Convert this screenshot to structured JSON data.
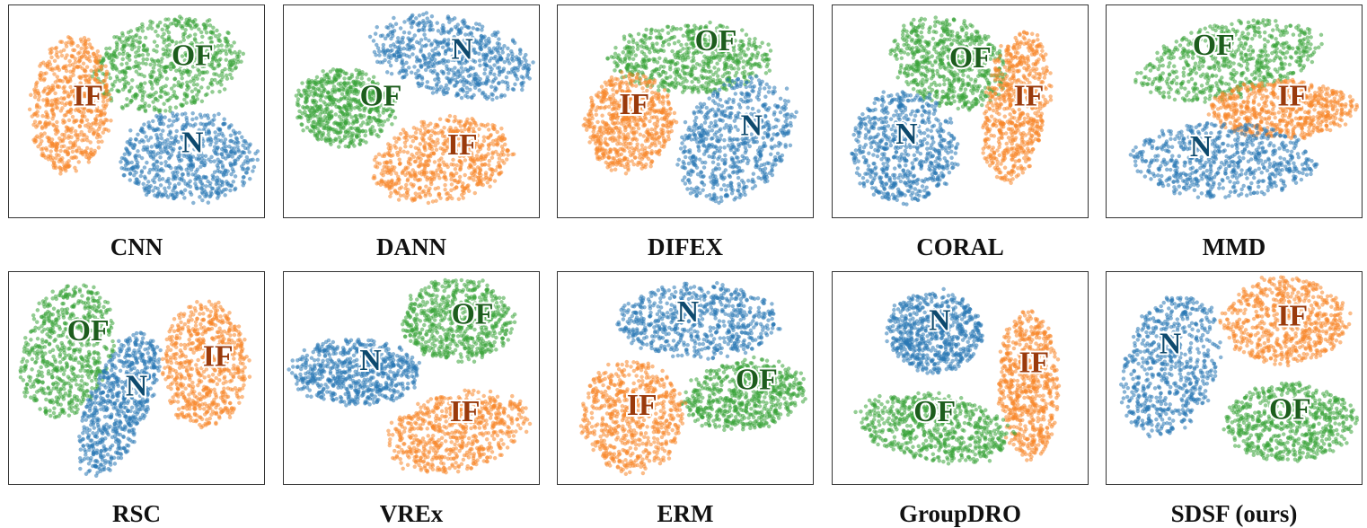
{
  "chart_data": {
    "type": "scatter",
    "description_classes": [
      "N",
      "IF",
      "OF"
    ],
    "colors": {
      "N": "#2a78b5",
      "IF": "#f7862a",
      "OF": "#3aa43a"
    },
    "label_colors": {
      "N": "#0e4a6e",
      "IF": "#9a3a0b",
      "OF": "#1d5d1d"
    },
    "panels": [
      {
        "title": "CNN",
        "clusters": [
          {
            "cls": "OF",
            "cx": 0.62,
            "cy": 0.28,
            "rx": 0.3,
            "ry": 0.22,
            "rot": -10
          },
          {
            "cls": "IF",
            "cx": 0.24,
            "cy": 0.47,
            "rx": 0.16,
            "ry": 0.33,
            "rot": 5
          },
          {
            "cls": "N",
            "cx": 0.7,
            "cy": 0.72,
            "rx": 0.27,
            "ry": 0.22,
            "rot": 0
          }
        ],
        "labels": [
          {
            "cls": "OF",
            "x": 0.72,
            "y": 0.25
          },
          {
            "cls": "IF",
            "x": 0.31,
            "y": 0.44
          },
          {
            "cls": "N",
            "x": 0.72,
            "y": 0.66
          }
        ]
      },
      {
        "title": "DANN",
        "clusters": [
          {
            "cls": "N",
            "cx": 0.66,
            "cy": 0.24,
            "rx": 0.33,
            "ry": 0.19,
            "rot": 12
          },
          {
            "cls": "OF",
            "cx": 0.24,
            "cy": 0.48,
            "rx": 0.2,
            "ry": 0.19,
            "rot": 0
          },
          {
            "cls": "IF",
            "cx": 0.62,
            "cy": 0.73,
            "rx": 0.28,
            "ry": 0.2,
            "rot": -12
          }
        ],
        "labels": [
          {
            "cls": "N",
            "x": 0.7,
            "y": 0.22
          },
          {
            "cls": "OF",
            "x": 0.38,
            "y": 0.44
          },
          {
            "cls": "IF",
            "x": 0.7,
            "y": 0.67
          }
        ]
      },
      {
        "title": "DIFEX",
        "clusters": [
          {
            "cls": "OF",
            "cx": 0.52,
            "cy": 0.25,
            "rx": 0.33,
            "ry": 0.17,
            "rot": 0
          },
          {
            "cls": "IF",
            "cx": 0.28,
            "cy": 0.55,
            "rx": 0.18,
            "ry": 0.24,
            "rot": 15
          },
          {
            "cls": "N",
            "cx": 0.7,
            "cy": 0.63,
            "rx": 0.2,
            "ry": 0.34,
            "rot": 38
          }
        ],
        "labels": [
          {
            "cls": "OF",
            "x": 0.62,
            "y": 0.18
          },
          {
            "cls": "IF",
            "x": 0.3,
            "y": 0.48
          },
          {
            "cls": "N",
            "x": 0.76,
            "y": 0.58
          }
        ]
      },
      {
        "title": "CORAL",
        "clusters": [
          {
            "cls": "OF",
            "cx": 0.46,
            "cy": 0.27,
            "rx": 0.24,
            "ry": 0.21,
            "rot": 20
          },
          {
            "cls": "IF",
            "cx": 0.72,
            "cy": 0.47,
            "rx": 0.13,
            "ry": 0.37,
            "rot": 10
          },
          {
            "cls": "N",
            "cx": 0.28,
            "cy": 0.67,
            "rx": 0.22,
            "ry": 0.27,
            "rot": 0
          }
        ],
        "labels": [
          {
            "cls": "OF",
            "x": 0.54,
            "y": 0.26
          },
          {
            "cls": "IF",
            "x": 0.77,
            "y": 0.44
          },
          {
            "cls": "N",
            "x": 0.29,
            "y": 0.62
          }
        ]
      },
      {
        "title": "MMD",
        "clusters": [
          {
            "cls": "OF",
            "cx": 0.48,
            "cy": 0.26,
            "rx": 0.37,
            "ry": 0.18,
            "rot": -12
          },
          {
            "cls": "IF",
            "cx": 0.69,
            "cy": 0.49,
            "rx": 0.29,
            "ry": 0.14,
            "rot": 0
          },
          {
            "cls": "N",
            "cx": 0.46,
            "cy": 0.73,
            "rx": 0.37,
            "ry": 0.18,
            "rot": 0
          }
        ],
        "labels": [
          {
            "cls": "OF",
            "x": 0.42,
            "y": 0.2
          },
          {
            "cls": "IF",
            "x": 0.73,
            "y": 0.44
          },
          {
            "cls": "N",
            "x": 0.37,
            "y": 0.68
          }
        ]
      },
      {
        "title": "RSC",
        "clusters": [
          {
            "cls": "OF",
            "cx": 0.23,
            "cy": 0.37,
            "rx": 0.18,
            "ry": 0.33,
            "rot": 15
          },
          {
            "cls": "N",
            "cx": 0.43,
            "cy": 0.62,
            "rx": 0.12,
            "ry": 0.37,
            "rot": 22
          },
          {
            "cls": "IF",
            "cx": 0.77,
            "cy": 0.44,
            "rx": 0.17,
            "ry": 0.31,
            "rot": 0
          }
        ],
        "labels": [
          {
            "cls": "OF",
            "x": 0.31,
            "y": 0.29
          },
          {
            "cls": "N",
            "x": 0.5,
            "y": 0.55
          },
          {
            "cls": "IF",
            "x": 0.82,
            "y": 0.41
          }
        ]
      },
      {
        "title": "VREx",
        "clusters": [
          {
            "cls": "OF",
            "cx": 0.68,
            "cy": 0.23,
            "rx": 0.22,
            "ry": 0.2,
            "rot": 0
          },
          {
            "cls": "N",
            "cx": 0.28,
            "cy": 0.47,
            "rx": 0.26,
            "ry": 0.16,
            "rot": 0
          },
          {
            "cls": "IF",
            "cx": 0.68,
            "cy": 0.75,
            "rx": 0.29,
            "ry": 0.19,
            "rot": -14
          }
        ],
        "labels": [
          {
            "cls": "OF",
            "x": 0.74,
            "y": 0.21
          },
          {
            "cls": "N",
            "x": 0.34,
            "y": 0.43
          },
          {
            "cls": "IF",
            "x": 0.71,
            "y": 0.67
          }
        ]
      },
      {
        "title": "ERM",
        "clusters": [
          {
            "cls": "N",
            "cx": 0.55,
            "cy": 0.23,
            "rx": 0.32,
            "ry": 0.18,
            "rot": 0
          },
          {
            "cls": "OF",
            "cx": 0.73,
            "cy": 0.58,
            "rx": 0.25,
            "ry": 0.17,
            "rot": -8
          },
          {
            "cls": "IF",
            "cx": 0.29,
            "cy": 0.68,
            "rx": 0.21,
            "ry": 0.27,
            "rot": 0
          }
        ],
        "labels": [
          {
            "cls": "N",
            "x": 0.51,
            "y": 0.2
          },
          {
            "cls": "OF",
            "x": 0.78,
            "y": 0.52
          },
          {
            "cls": "IF",
            "x": 0.33,
            "y": 0.64
          }
        ]
      },
      {
        "title": "GroupDRO",
        "clusters": [
          {
            "cls": "N",
            "cx": 0.4,
            "cy": 0.28,
            "rx": 0.19,
            "ry": 0.2,
            "rot": 0
          },
          {
            "cls": "IF",
            "cx": 0.77,
            "cy": 0.53,
            "rx": 0.12,
            "ry": 0.36,
            "rot": 0
          },
          {
            "cls": "OF",
            "cx": 0.4,
            "cy": 0.73,
            "rx": 0.32,
            "ry": 0.16,
            "rot": 8
          }
        ],
        "labels": [
          {
            "cls": "N",
            "x": 0.42,
            "y": 0.24
          },
          {
            "cls": "IF",
            "x": 0.79,
            "y": 0.44
          },
          {
            "cls": "OF",
            "x": 0.4,
            "y": 0.67
          }
        ]
      },
      {
        "title": "SDSF (ours)",
        "clusters": [
          {
            "cls": "N",
            "cx": 0.25,
            "cy": 0.44,
            "rx": 0.19,
            "ry": 0.35,
            "rot": 18
          },
          {
            "cls": "IF",
            "cx": 0.7,
            "cy": 0.23,
            "rx": 0.25,
            "ry": 0.21,
            "rot": 0
          },
          {
            "cls": "OF",
            "cx": 0.72,
            "cy": 0.71,
            "rx": 0.26,
            "ry": 0.19,
            "rot": 0
          }
        ],
        "labels": [
          {
            "cls": "N",
            "x": 0.25,
            "y": 0.35
          },
          {
            "cls": "IF",
            "x": 0.73,
            "y": 0.22
          },
          {
            "cls": "OF",
            "x": 0.72,
            "y": 0.66
          }
        ]
      }
    ]
  }
}
